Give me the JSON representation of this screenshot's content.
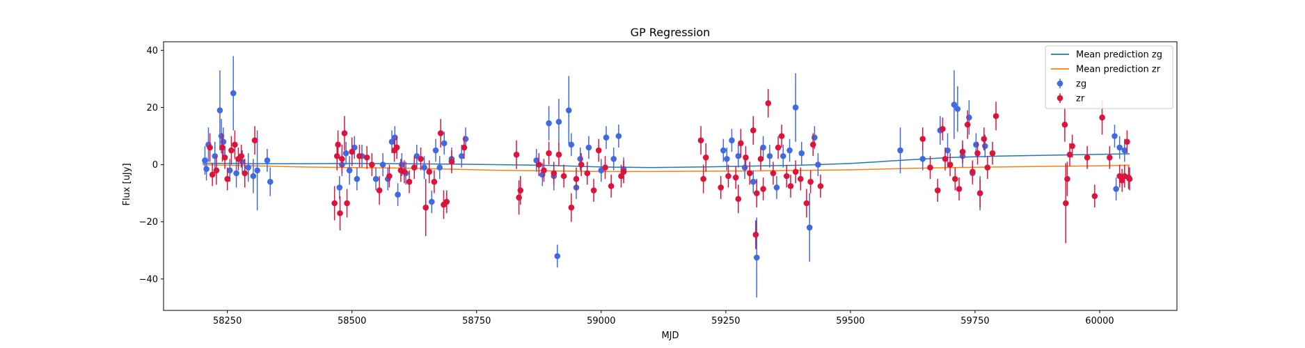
{
  "chart_data": {
    "type": "scatter",
    "title": "GP Regression",
    "xlabel": "MJD",
    "ylabel": "Flux [uJy]",
    "xlim": [
      58122,
      60155
    ],
    "ylim": [
      -51,
      43
    ],
    "xticks": [
      58250,
      58500,
      58750,
      59000,
      59250,
      59500,
      59750,
      60000
    ],
    "yticks": [
      -40,
      -20,
      0,
      20,
      40
    ],
    "legend_position": "top-right",
    "legend": [
      "Mean prediction zg",
      "Mean prediction zr",
      "zg",
      "zr"
    ],
    "colors": {
      "mean_zg": "#1f77b4",
      "mean_zr": "#ff7f0e",
      "zg": "#4169e1",
      "zr": "#dc143c"
    },
    "mean_prediction": [
      {
        "name": "Mean prediction zg",
        "x": [
          58200,
          58300,
          58400,
          58500,
          58600,
          58700,
          58800,
          58900,
          59000,
          59100,
          59200,
          59300,
          59400,
          59500,
          59600,
          59700,
          59800,
          59900,
          60000,
          60060
        ],
        "y": [
          0.5,
          0.3,
          0.3,
          0.4,
          0.3,
          0.2,
          0.0,
          -0.3,
          -0.8,
          -1.0,
          -0.8,
          -0.5,
          -0.2,
          0.4,
          1.5,
          2.5,
          3.0,
          3.3,
          3.6,
          3.8
        ]
      },
      {
        "name": "Mean prediction zr",
        "x": [
          58200,
          58300,
          58400,
          58500,
          58600,
          58700,
          58800,
          58900,
          59000,
          59100,
          59200,
          59300,
          59400,
          59500,
          59600,
          59700,
          59800,
          59900,
          60000,
          60060
        ],
        "y": [
          0.0,
          -0.4,
          -0.8,
          -1.0,
          -1.2,
          -1.6,
          -2.0,
          -2.2,
          -2.4,
          -2.4,
          -2.3,
          -2.2,
          -2.0,
          -1.8,
          -1.4,
          -1.0,
          -0.8,
          -0.6,
          -0.4,
          -0.2
        ]
      }
    ],
    "observations": [
      {
        "name": "zg",
        "points": [
          [
            58205,
            1.5,
            5
          ],
          [
            58208,
            -1.5,
            4
          ],
          [
            58212,
            7,
            6
          ],
          [
            58225,
            3,
            5
          ],
          [
            58235,
            19,
            14
          ],
          [
            58238,
            10,
            6
          ],
          [
            58242,
            8,
            5
          ],
          [
            58255,
            -2,
            4
          ],
          [
            58262,
            25,
            13
          ],
          [
            58268,
            -3,
            5
          ],
          [
            58280,
            1,
            4
          ],
          [
            58292,
            -1,
            5
          ],
          [
            58302,
            -4,
            6
          ],
          [
            58310,
            -2,
            14
          ],
          [
            58330,
            1.5,
            4
          ],
          [
            58336,
            -6,
            5
          ],
          [
            58475,
            -8,
            4
          ],
          [
            58480,
            0,
            4
          ],
          [
            58488,
            4,
            4
          ],
          [
            58495,
            -2,
            5
          ],
          [
            58505,
            6,
            4
          ],
          [
            58510,
            -5,
            4
          ],
          [
            58520,
            3,
            4
          ],
          [
            58548,
            -5,
            4
          ],
          [
            58562,
            0,
            4
          ],
          [
            58572,
            -5,
            4
          ],
          [
            58580,
            8,
            4
          ],
          [
            58586,
            9.5,
            4
          ],
          [
            58592,
            -10.5,
            4
          ],
          [
            58600,
            0,
            4
          ],
          [
            58608,
            -3,
            4
          ],
          [
            58630,
            3,
            4
          ],
          [
            58645,
            -1,
            4
          ],
          [
            58660,
            -13,
            4
          ],
          [
            58668,
            5,
            4
          ],
          [
            58676,
            -1,
            4
          ],
          [
            58685,
            7.5,
            4
          ],
          [
            58700,
            2,
            4
          ],
          [
            58720,
            3,
            4
          ],
          [
            58728,
            9,
            4
          ],
          [
            58870,
            1.5,
            4
          ],
          [
            58882,
            -3.5,
            4
          ],
          [
            58895,
            14.5,
            6
          ],
          [
            58905,
            -4,
            5
          ],
          [
            58912,
            -32,
            4
          ],
          [
            58915,
            15,
            8
          ],
          [
            58935,
            19,
            12
          ],
          [
            58940,
            7,
            4
          ],
          [
            58950,
            -8,
            4
          ],
          [
            58958,
            2,
            4
          ],
          [
            58975,
            6,
            4
          ],
          [
            59000,
            -2,
            4
          ],
          [
            59010,
            9.5,
            4
          ],
          [
            59025,
            2,
            4
          ],
          [
            59035,
            10,
            4
          ],
          [
            59045,
            -1.5,
            4
          ],
          [
            59245,
            5,
            4
          ],
          [
            59252,
            2,
            4
          ],
          [
            59262,
            8.5,
            4
          ],
          [
            59275,
            3,
            4
          ],
          [
            59288,
            -1,
            4
          ],
          [
            59305,
            -6,
            4
          ],
          [
            59312,
            -32.5,
            14
          ],
          [
            59325,
            6,
            4
          ],
          [
            59338,
            3,
            4
          ],
          [
            59352,
            -8,
            4
          ],
          [
            59365,
            3,
            4
          ],
          [
            59378,
            5,
            4
          ],
          [
            59390,
            20,
            12
          ],
          [
            59402,
            4,
            4
          ],
          [
            59418,
            -22,
            12
          ],
          [
            59428,
            9.5,
            4
          ],
          [
            59435,
            0,
            4
          ],
          [
            59600,
            5,
            8
          ],
          [
            59645,
            2,
            4
          ],
          [
            59680,
            12,
            5
          ],
          [
            59695,
            5,
            6
          ],
          [
            59708,
            21,
            12
          ],
          [
            59715,
            19.5,
            8
          ],
          [
            59725,
            3,
            4
          ],
          [
            59738,
            16.5,
            6
          ],
          [
            59745,
            -3,
            4
          ],
          [
            59752,
            7,
            4
          ],
          [
            59760,
            -10,
            6
          ],
          [
            59770,
            6.5,
            4
          ],
          [
            60030,
            10,
            4
          ],
          [
            60033,
            -8.5,
            4
          ],
          [
            60040,
            6,
            4
          ],
          [
            60050,
            5,
            4
          ]
        ]
      },
      {
        "name": "zr",
        "points": [
          [
            58215,
            6,
            5
          ],
          [
            58220,
            -3.5,
            4
          ],
          [
            58228,
            -2,
            5
          ],
          [
            58240,
            6,
            5
          ],
          [
            58245,
            2.5,
            4
          ],
          [
            58250,
            -5,
            4
          ],
          [
            58258,
            5,
            5
          ],
          [
            58265,
            7,
            5
          ],
          [
            58272,
            2,
            4
          ],
          [
            58278,
            3,
            4
          ],
          [
            58285,
            -3,
            5
          ],
          [
            58305,
            8.5,
            5
          ],
          [
            58465,
            -13.5,
            6
          ],
          [
            58470,
            3,
            5
          ],
          [
            58472,
            7,
            5
          ],
          [
            58476,
            -17,
            6
          ],
          [
            58480,
            2,
            5
          ],
          [
            58485,
            11,
            6
          ],
          [
            58490,
            -13.5,
            5
          ],
          [
            58500,
            4.5,
            5
          ],
          [
            58515,
            3,
            4
          ],
          [
            58530,
            2.5,
            4
          ],
          [
            58540,
            0,
            4
          ],
          [
            58555,
            -9,
            5
          ],
          [
            58575,
            -4,
            4
          ],
          [
            58585,
            5,
            4
          ],
          [
            58590,
            6,
            4
          ],
          [
            58598,
            -2,
            4
          ],
          [
            58605,
            -2.5,
            4
          ],
          [
            58615,
            -6,
            4
          ],
          [
            58625,
            -1,
            4
          ],
          [
            58638,
            2,
            4
          ],
          [
            58648,
            -15,
            10
          ],
          [
            58655,
            -2.5,
            4
          ],
          [
            58665,
            -6,
            4
          ],
          [
            58678,
            11,
            5
          ],
          [
            58684,
            -14,
            5
          ],
          [
            58690,
            -13,
            4
          ],
          [
            58700,
            1,
            4
          ],
          [
            58725,
            6,
            4
          ],
          [
            58830,
            3.5,
            5
          ],
          [
            58835,
            -11.5,
            6
          ],
          [
            58838,
            -9,
            5
          ],
          [
            58875,
            0,
            4
          ],
          [
            58885,
            -2,
            4
          ],
          [
            58895,
            4,
            4
          ],
          [
            58905,
            -3,
            4
          ],
          [
            58915,
            3.5,
            4
          ],
          [
            58925,
            -4,
            4
          ],
          [
            58940,
            -15,
            5
          ],
          [
            58950,
            -5,
            4
          ],
          [
            58960,
            0,
            4
          ],
          [
            58972,
            -3,
            4
          ],
          [
            58985,
            -9,
            4
          ],
          [
            58995,
            5,
            4
          ],
          [
            59008,
            -1,
            4
          ],
          [
            59020,
            -7.5,
            4
          ],
          [
            59040,
            -4,
            4
          ],
          [
            59045,
            -2.5,
            4
          ],
          [
            59200,
            8.5,
            5
          ],
          [
            59205,
            -5,
            5
          ],
          [
            59210,
            2.5,
            5
          ],
          [
            59240,
            -8,
            4
          ],
          [
            59255,
            -4,
            4
          ],
          [
            59270,
            -4.5,
            4
          ],
          [
            59275,
            -12,
            5
          ],
          [
            59280,
            7.5,
            5
          ],
          [
            59290,
            2.5,
            4
          ],
          [
            59298,
            -3,
            4
          ],
          [
            59305,
            12,
            5
          ],
          [
            59310,
            -24.5,
            5
          ],
          [
            59312,
            -10,
            5
          ],
          [
            59320,
            2,
            4
          ],
          [
            59325,
            -8.5,
            4
          ],
          [
            59335,
            21.5,
            5
          ],
          [
            59345,
            -3,
            4
          ],
          [
            59355,
            6,
            4
          ],
          [
            59362,
            10,
            4
          ],
          [
            59372,
            -4,
            4
          ],
          [
            59380,
            -7.5,
            4
          ],
          [
            59390,
            -2.5,
            4
          ],
          [
            59400,
            -5,
            4
          ],
          [
            59412,
            -13.5,
            5
          ],
          [
            59420,
            -6,
            4
          ],
          [
            59425,
            7,
            4
          ],
          [
            59440,
            -7.5,
            4
          ],
          [
            59645,
            9,
            4
          ],
          [
            59660,
            -1,
            4
          ],
          [
            59675,
            -9,
            4
          ],
          [
            59685,
            12.5,
            4
          ],
          [
            59690,
            2,
            4
          ],
          [
            59700,
            0,
            4
          ],
          [
            59710,
            -5,
            4
          ],
          [
            59718,
            -8.5,
            4
          ],
          [
            59725,
            4.5,
            4
          ],
          [
            59735,
            14,
            5
          ],
          [
            59745,
            -2.5,
            4
          ],
          [
            59755,
            4,
            4
          ],
          [
            59760,
            -10,
            5
          ],
          [
            59768,
            9,
            4
          ],
          [
            59775,
            -1,
            4
          ],
          [
            59785,
            4,
            4
          ],
          [
            59792,
            17,
            5
          ],
          [
            59930,
            14,
            6
          ],
          [
            59932,
            -13.5,
            14
          ],
          [
            59935,
            -5,
            6
          ],
          [
            59940,
            3.5,
            4
          ],
          [
            59945,
            6.5,
            4
          ],
          [
            59975,
            2.5,
            4
          ],
          [
            59990,
            -11,
            4
          ],
          [
            60005,
            16.5,
            6
          ],
          [
            60020,
            2.5,
            4
          ],
          [
            60040,
            -4,
            4
          ],
          [
            60045,
            -5.5,
            4
          ],
          [
            60050,
            -4,
            4
          ],
          [
            60055,
            8,
            4
          ],
          [
            60058,
            -4.5,
            4
          ],
          [
            60060,
            -5,
            4
          ]
        ]
      }
    ]
  }
}
